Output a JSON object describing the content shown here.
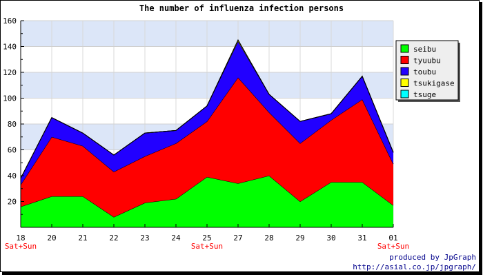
{
  "chart_data": {
    "type": "area",
    "stacked": true,
    "title": "The number of influenza infection persons",
    "categories": [
      "18",
      "20",
      "21",
      "22",
      "23",
      "24",
      "25",
      "27",
      "28",
      "29",
      "30",
      "31",
      "01"
    ],
    "weekend_labels": [
      "Sat+Sun",
      "",
      "",
      "",
      "",
      "",
      "Sat+Sun",
      "",
      "",
      "",
      "",
      "",
      "Sat+Sun"
    ],
    "series": [
      {
        "name": "seibu",
        "color": "#00ff00",
        "values": [
          16,
          24,
          24,
          8,
          19,
          22,
          39,
          34,
          40,
          20,
          35,
          35,
          17
        ]
      },
      {
        "name": "tyuubu",
        "color": "#ff0000",
        "values": [
          17,
          46,
          39,
          35,
          36,
          43,
          43,
          82,
          49,
          45,
          48,
          64,
          32
        ]
      },
      {
        "name": "toubu",
        "color": "#2200ff",
        "values": [
          5,
          15,
          10,
          13,
          18,
          10,
          12,
          28,
          14,
          17,
          5,
          18,
          9
        ]
      },
      {
        "name": "tsukigase",
        "color": "#ffff00",
        "values": [
          0,
          0,
          0,
          0,
          0,
          0,
          0,
          1,
          0,
          0,
          0,
          0,
          0
        ]
      },
      {
        "name": "tsuge",
        "color": "#00ffff",
        "values": [
          0,
          0,
          0,
          0,
          0,
          0,
          0,
          0,
          0,
          0,
          0,
          0,
          0
        ]
      }
    ],
    "ylim": [
      0,
      160
    ],
    "yticks": [
      20,
      40,
      60,
      80,
      100,
      120,
      140,
      160
    ],
    "grid": true,
    "legend_position": "right"
  },
  "credits": {
    "line1": "produced by JpGraph",
    "line2": "http://asial.co.jp/jpgraph/"
  }
}
